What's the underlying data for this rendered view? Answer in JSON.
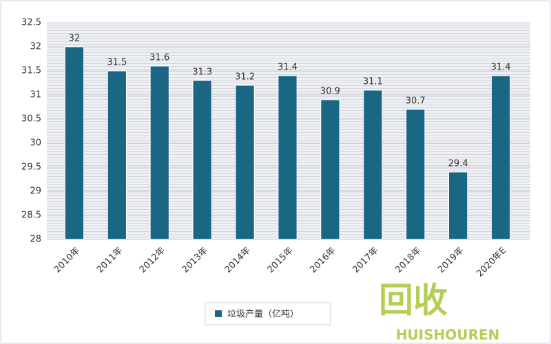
{
  "chart_data": {
    "type": "bar",
    "categories": [
      "2010年",
      "2011年",
      "2012年",
      "2013年",
      "2014年",
      "2015年",
      "2016年",
      "2017年",
      "2018年",
      "2019年",
      "2020年E"
    ],
    "series": [
      {
        "name": "垃圾产量（亿吨）",
        "color": "#1b6685",
        "values": [
          32,
          31.5,
          31.6,
          31.3,
          31.2,
          31.4,
          30.9,
          31.1,
          30.7,
          29.4,
          31.4
        ]
      }
    ],
    "ylim": [
      28,
      32.5
    ],
    "yticks": [
      28,
      28.5,
      29,
      29.5,
      30,
      30.5,
      31,
      31.5,
      32,
      32.5
    ],
    "grid": true,
    "legend": "bottom"
  },
  "watermark": {
    "logo": "回收",
    "brand": "HUISHOUREN"
  }
}
